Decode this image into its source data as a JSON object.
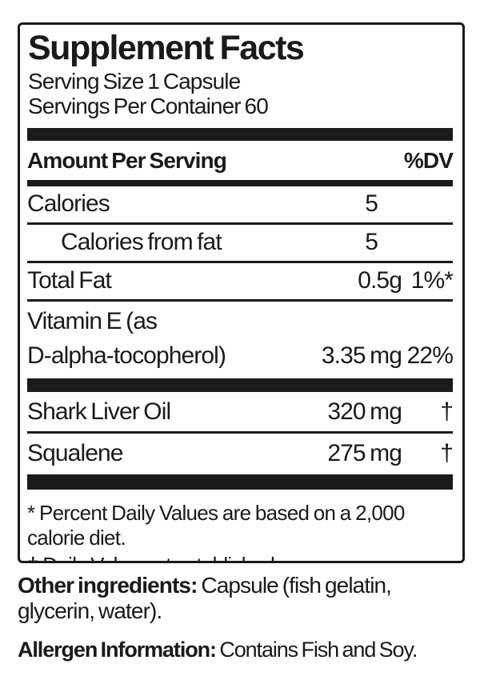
{
  "supplement_facts": {
    "title": "Supplement Facts",
    "serving_size": "Serving Size 1 Capsule",
    "servings_per_container": "Servings Per Container 60",
    "column_headers": {
      "amount_per_serving": "Amount Per Serving",
      "percent_dv": "%DV"
    },
    "rows": {
      "calories": {
        "name": "Calories",
        "amount": "5",
        "dv": ""
      },
      "calories_from_fat": {
        "name": "Calories from fat",
        "amount": "5",
        "dv": ""
      },
      "total_fat": {
        "name": "Total Fat",
        "amount": "0.5g",
        "dv": "1%*"
      },
      "vitamin_e": {
        "name_line1": "Vitamin E (as",
        "name_line2": "D-alpha-tocopherol)",
        "amount": "3.35 mg",
        "dv": "22%"
      },
      "shark_liver_oil": {
        "name": "Shark Liver Oil",
        "amount": "320 mg",
        "dv": "†"
      },
      "squalene": {
        "name": "Squalene",
        "amount": "275 mg",
        "dv": "†"
      }
    },
    "footnotes": {
      "percent_dv": "* Percent Daily Values are based on a 2,000 calorie diet.",
      "dagger": "† Daily Value not established."
    }
  },
  "additional_info": {
    "other_ingredients_label": "Other ingredients:",
    "other_ingredients_text": "Capsule (fish gelatin, glycerin, water).",
    "allergen_label": "Allergen Information:",
    "allergen_text": "Contains Fish and Soy."
  },
  "colors": {
    "ink": "#1a1a1a",
    "background": "#ffffff"
  }
}
